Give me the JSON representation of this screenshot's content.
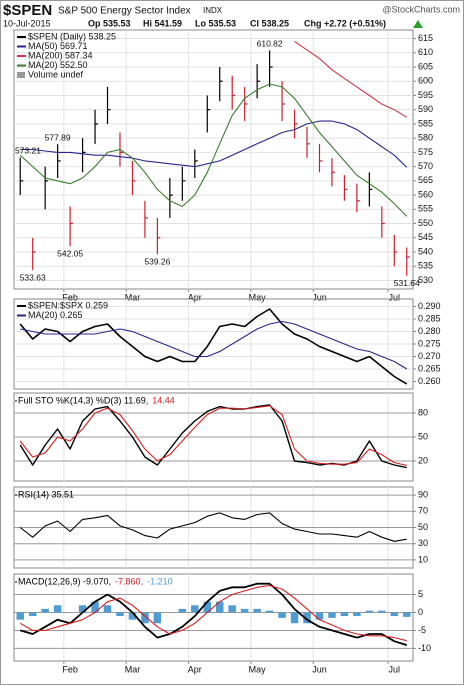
{
  "header": {
    "symbol": "$SPEN",
    "name": "S&P 500 Energy Sector Index",
    "exchange": "INDX",
    "source": "@StockCharts.com",
    "date": "10-Jul-2015",
    "open": "Op 535.53",
    "high": "Hi 541.59",
    "low": "Lo 535.53",
    "close": "Cl 538.25",
    "change": "Chg +2.72 (+0.51%)"
  },
  "chart_data": [
    {
      "type": "ohlc",
      "legend_layout": "column",
      "grid": true,
      "categories": [
        null,
        null,
        null,
        null,
        "Feb",
        null,
        null,
        null,
        null,
        "Mar",
        null,
        null,
        null,
        null,
        "Apr",
        null,
        null,
        null,
        null,
        "May",
        null,
        null,
        null,
        null,
        "Jun",
        null,
        null,
        null,
        null,
        null,
        "Jul",
        null
      ],
      "ylim": [
        527,
        618
      ],
      "yticks": [
        530,
        535,
        540,
        545,
        550,
        555,
        560,
        565,
        570,
        575,
        580,
        585,
        590,
        595,
        600,
        605,
        610,
        615
      ],
      "series": [
        {
          "name": "$SPEN (Daily) 538.25",
          "type": "ohlc",
          "color": "#000000",
          "up_color": "#000000",
          "down_color": "#cc1f2d",
          "high": [
            573.21,
            545,
            570,
            577.89,
            556,
            580,
            590,
            598,
            582,
            572,
            558,
            552,
            566,
            570,
            576,
            595,
            605,
            602,
            598,
            606,
            610.82,
            600,
            590,
            584,
            578,
            573,
            567,
            564,
            568,
            556,
            546,
            541.59
          ],
          "low": [
            560,
            533.63,
            555,
            566,
            542.05,
            568,
            578,
            585,
            570,
            560,
            545,
            539.26,
            552,
            558,
            566,
            582,
            593,
            590,
            586,
            594,
            598,
            586,
            580,
            573,
            568,
            563,
            558,
            554,
            556,
            545,
            535,
            531.64
          ],
          "values": [
            565,
            540,
            565,
            572,
            550,
            575,
            585,
            590,
            575,
            565,
            552,
            545,
            560,
            565,
            572,
            590,
            600,
            595,
            592,
            600,
            605,
            592,
            585,
            578,
            572,
            568,
            562,
            558,
            562,
            550,
            540,
            538.25
          ]
        },
        {
          "name": "MA(50) 569.71",
          "type": "line",
          "color": "#26268c",
          "values": [
            576,
            576,
            575.5,
            575,
            575,
            574.5,
            574,
            574,
            573.5,
            573,
            572,
            571.5,
            571,
            570.5,
            570,
            571,
            572,
            574,
            576,
            578,
            580,
            582,
            583,
            585,
            586,
            586,
            585,
            583,
            580,
            577,
            574,
            569.71
          ]
        },
        {
          "name": "MA(200) 587.34",
          "type": "line",
          "color": "#c8364a",
          "values": [
            null,
            null,
            null,
            null,
            null,
            null,
            null,
            null,
            null,
            null,
            null,
            null,
            null,
            null,
            null,
            null,
            null,
            null,
            null,
            null,
            null,
            null,
            614,
            611,
            608,
            604,
            601,
            598,
            595,
            592,
            590,
            587.34
          ]
        },
        {
          "name": "MA(20) 552.50",
          "type": "line",
          "color": "#3a7d2c",
          "values": [
            574,
            570,
            566,
            565,
            564,
            566,
            570,
            575,
            576,
            573,
            568,
            562,
            558,
            556,
            560,
            568,
            578,
            588,
            594,
            597,
            599,
            598,
            594,
            588,
            582,
            577,
            572,
            567,
            564,
            561,
            557,
            552.5
          ]
        }
      ],
      "volume_label": "Volume undef",
      "volume_color": "#999999",
      "annotations": [
        {
          "index": 0,
          "value": 573.21
        },
        {
          "index": 1,
          "value": 533.63
        },
        {
          "index": 3,
          "value": 577.89
        },
        {
          "index": 4,
          "value": 542.05
        },
        {
          "index": 11,
          "value": 539.26
        },
        {
          "index": 20,
          "value": 610.82
        },
        {
          "index": 31,
          "value": 531.64
        }
      ]
    },
    {
      "type": "line",
      "legend_layout": "column",
      "grid": true,
      "ylim": [
        0.257,
        0.293
      ],
      "yticks": [
        {
          "value": 0.26,
          "label": "0.260"
        },
        {
          "value": 0.265,
          "label": "0.265"
        },
        {
          "value": 0.27,
          "label": "0.270"
        },
        {
          "value": 0.275,
          "label": "0.275"
        },
        {
          "value": 0.28,
          "label": "0.280"
        },
        {
          "value": 0.285,
          "label": "0.285"
        },
        {
          "value": 0.29,
          "label": "0.290"
        }
      ],
      "series": [
        {
          "name": "$SPEN:$SPX 0.259",
          "type": "line",
          "color": "#000000",
          "width": 1.6,
          "values": [
            0.283,
            0.277,
            0.281,
            0.28,
            0.276,
            0.28,
            0.282,
            0.283,
            0.278,
            0.274,
            0.27,
            0.268,
            0.27,
            0.268,
            0.268,
            0.274,
            0.282,
            0.283,
            0.282,
            0.286,
            0.289,
            0.283,
            0.279,
            0.277,
            0.274,
            0.272,
            0.27,
            0.268,
            0.27,
            0.266,
            0.262,
            0.259
          ]
        },
        {
          "name": "MA(20) 0.265",
          "type": "line",
          "color": "#26268c",
          "values": [
            0.281,
            0.28,
            0.279,
            0.279,
            0.279,
            0.279,
            0.279,
            0.28,
            0.281,
            0.28,
            0.278,
            0.276,
            0.274,
            0.272,
            0.27,
            0.27,
            0.272,
            0.275,
            0.278,
            0.281,
            0.283,
            0.284,
            0.283,
            0.281,
            0.279,
            0.277,
            0.275,
            0.273,
            0.272,
            0.27,
            0.268,
            0.265
          ]
        }
      ]
    },
    {
      "type": "line",
      "legend_layout": "row",
      "grid": true,
      "ylim": [
        -5,
        105
      ],
      "yticks": [
        20,
        50,
        80
      ],
      "series": [
        {
          "name": "Full STO %K(14,3) %D(3) 11.69,",
          "type": "line",
          "color": "#000000",
          "width": 1.4,
          "values": [
            40,
            15,
            40,
            60,
            35,
            70,
            85,
            88,
            70,
            50,
            25,
            15,
            35,
            55,
            70,
            82,
            88,
            85,
            85,
            88,
            90,
            70,
            20,
            18,
            15,
            17,
            15,
            20,
            45,
            20,
            15,
            11.69
          ]
        },
        {
          "name": "14.44",
          "type": "line",
          "color": "#d21f1f",
          "values": [
            45,
            25,
            30,
            50,
            45,
            60,
            80,
            86,
            78,
            58,
            35,
            20,
            28,
            45,
            62,
            78,
            86,
            86,
            85,
            87,
            89,
            78,
            35,
            20,
            17,
            16,
            16,
            18,
            35,
            28,
            18,
            14.44
          ]
        }
      ]
    },
    {
      "type": "line",
      "legend_layout": "row",
      "grid": true,
      "ylim": [
        0,
        100
      ],
      "yticks": [
        10,
        30,
        50,
        70,
        90
      ],
      "series": [
        {
          "name": "RSI(14) 35.51",
          "type": "line",
          "color": "#000000",
          "values": [
            50,
            38,
            52,
            58,
            45,
            60,
            62,
            65,
            52,
            47,
            40,
            37,
            48,
            52,
            56,
            64,
            68,
            62,
            60,
            66,
            68,
            55,
            48,
            45,
            42,
            42,
            40,
            38,
            45,
            38,
            33,
            35.51
          ]
        }
      ]
    },
    {
      "type": "line",
      "legend_layout": "row",
      "grid": true,
      "categories": [
        null,
        null,
        null,
        null,
        "Feb",
        null,
        null,
        null,
        null,
        "Mar",
        null,
        null,
        null,
        null,
        "Apr",
        null,
        null,
        null,
        null,
        "May",
        null,
        null,
        null,
        null,
        "Jun",
        null,
        null,
        null,
        null,
        null,
        "Jul",
        null
      ],
      "ylim": [
        -13.5,
        10.7
      ],
      "yticks": [
        -10,
        -5,
        0,
        5
      ],
      "series": [
        {
          "name": "MACD(12,26,9) -9.070,",
          "type": "line",
          "color": "#000000",
          "width": 1.8,
          "values": [
            -5,
            -6,
            -4,
            -2,
            -3,
            0,
            3,
            5,
            3,
            0,
            -4,
            -7,
            -6,
            -4,
            -1,
            3,
            6,
            7,
            7,
            8,
            8,
            5,
            1,
            -2,
            -4,
            -5,
            -6,
            -7,
            -6,
            -6,
            -8,
            -9.07
          ]
        },
        {
          "name": "-7.860,",
          "type": "line",
          "color": "#d21f1f",
          "values": [
            -3,
            -5,
            -5,
            -4,
            -3,
            -2,
            0,
            3,
            4,
            2,
            -1,
            -4,
            -6,
            -5,
            -3,
            0,
            3,
            5,
            6,
            7,
            7.5,
            6.5,
            4,
            1,
            -2,
            -3.5,
            -5,
            -6,
            -6.5,
            -6.5,
            -7,
            -7.86
          ]
        },
        {
          "name": "-1.210",
          "type": "bar",
          "color": "#4f9bd4",
          "values": [
            -2,
            -1,
            1,
            2,
            0,
            2,
            3,
            2,
            -1,
            -2,
            -3,
            -3,
            0,
            1,
            2,
            3,
            3,
            2,
            1,
            1,
            0.5,
            -1.5,
            -3,
            -3,
            -2,
            -1.5,
            -1,
            -1,
            0.5,
            0.5,
            -1,
            -1.21
          ]
        }
      ]
    }
  ]
}
